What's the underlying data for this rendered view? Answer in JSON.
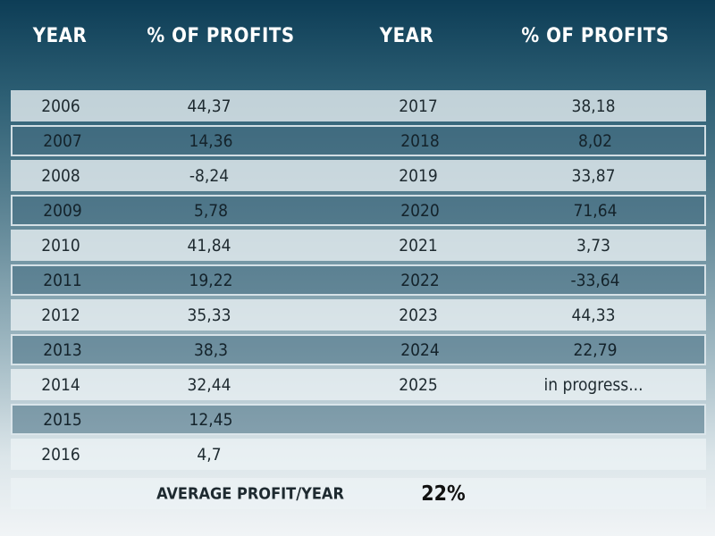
{
  "headers": {
    "year_left": "YEAR",
    "profit_left": "% OF PROFITS",
    "year_right": "YEAR",
    "profit_right": "% OF PROFITS"
  },
  "rows": [
    {
      "y1": "2006",
      "p1": "44,37",
      "y2": "2017",
      "p2": "38,18",
      "style": "light"
    },
    {
      "y1": "2007",
      "p1": "14,36",
      "y2": "2018",
      "p2": "8,02",
      "style": "dark"
    },
    {
      "y1": "2008",
      "p1": "-8,24",
      "y2": "2019",
      "p2": "33,87",
      "style": "light"
    },
    {
      "y1": "2009",
      "p1": "5,78",
      "y2": "2020",
      "p2": "71,64",
      "style": "dark"
    },
    {
      "y1": "2010",
      "p1": "41,84",
      "y2": "2021",
      "p2": "3,73",
      "style": "light"
    },
    {
      "y1": "2011",
      "p1": "19,22",
      "y2": "2022",
      "p2": "-33,64",
      "style": "dark"
    },
    {
      "y1": "2012",
      "p1": "35,33",
      "y2": "2023",
      "p2": "44,33",
      "style": "light"
    },
    {
      "y1": "2013",
      "p1": "38,3",
      "y2": "2024",
      "p2": "22,79",
      "style": "dark"
    },
    {
      "y1": "2014",
      "p1": "32,44",
      "y2": "2025",
      "p2": "in progress...",
      "style": "light"
    },
    {
      "y1": "2015",
      "p1": "12,45",
      "y2": "",
      "p2": "",
      "style": "dark"
    },
    {
      "y1": "2016",
      "p1": "4,7",
      "y2": "",
      "p2": "",
      "style": "light"
    }
  ],
  "average": {
    "label": "AVERAGE PROFIT/YEAR",
    "value": "22%"
  }
}
